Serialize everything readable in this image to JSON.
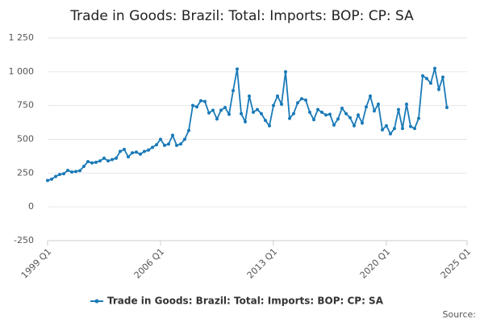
{
  "chart_data": {
    "type": "line",
    "title": "Trade in Goods: Brazil: Total: Imports: BOP: CP: SA",
    "source": "Source:",
    "x": [
      1999,
      1999.25,
      1999.5,
      1999.75,
      2000,
      2000.25,
      2000.5,
      2000.75,
      2001,
      2001.25,
      2001.5,
      2001.75,
      2002,
      2002.25,
      2002.5,
      2002.75,
      2003,
      2003.25,
      2003.5,
      2003.75,
      2004,
      2004.25,
      2004.5,
      2004.75,
      2005,
      2005.25,
      2005.5,
      2005.75,
      2006,
      2006.25,
      2006.5,
      2006.75,
      2007,
      2007.25,
      2007.5,
      2007.75,
      2008,
      2008.25,
      2008.5,
      2008.75,
      2009,
      2009.25,
      2009.5,
      2009.75,
      2010,
      2010.25,
      2010.5,
      2010.75,
      2011,
      2011.25,
      2011.5,
      2011.75,
      2012,
      2012.25,
      2012.5,
      2012.75,
      2013,
      2013.25,
      2013.5,
      2013.75,
      2014,
      2014.25,
      2014.5,
      2014.75,
      2015,
      2015.25,
      2015.5,
      2015.75,
      2016,
      2016.25,
      2016.5,
      2016.75,
      2017,
      2017.25,
      2017.5,
      2017.75,
      2018,
      2018.25,
      2018.5,
      2018.75,
      2019,
      2019.25,
      2019.5,
      2019.75,
      2020,
      2020.25,
      2020.5,
      2020.75,
      2021,
      2021.25,
      2021.5,
      2021.75,
      2022,
      2022.25,
      2022.5,
      2022.75,
      2023,
      2023.25,
      2023.5,
      2023.75
    ],
    "series": [
      {
        "name": "Trade in Goods: Brazil: Total: Imports: BOP: CP: SA",
        "color": "#1a7ab8",
        "values": [
          195,
          205,
          225,
          240,
          245,
          270,
          258,
          262,
          268,
          300,
          335,
          325,
          330,
          340,
          360,
          340,
          350,
          360,
          410,
          425,
          370,
          400,
          405,
          390,
          410,
          420,
          440,
          460,
          500,
          455,
          465,
          530,
          455,
          465,
          500,
          565,
          750,
          740,
          785,
          780,
          695,
          715,
          650,
          715,
          735,
          685,
          860,
          1020,
          690,
          630,
          820,
          700,
          720,
          690,
          640,
          600,
          750,
          820,
          760,
          1000,
          655,
          690,
          770,
          800,
          790,
          700,
          645,
          720,
          700,
          680,
          685,
          605,
          650,
          730,
          690,
          660,
          600,
          680,
          620,
          740,
          820,
          710,
          760,
          570,
          600,
          540,
          580,
          720,
          580,
          760,
          595,
          580,
          655,
          970,
          950,
          915,
          1025,
          870,
          960,
          735
        ]
      }
    ],
    "xlim": [
      1999,
      2025
    ],
    "xticks": [
      {
        "value": 1999,
        "label": "1999 Q1"
      },
      {
        "value": 2006,
        "label": "2006 Q1"
      },
      {
        "value": 2013,
        "label": "2013 Q1"
      },
      {
        "value": 2020,
        "label": "2020 Q1"
      },
      {
        "value": 2025,
        "label": "2025 Q1"
      }
    ],
    "ylim": [
      -250,
      1250
    ],
    "yticks": [
      -250,
      0,
      250,
      500,
      750,
      {
        "value": 1000,
        "label": "1 000"
      },
      {
        "value": 1250,
        "label": "1 250"
      }
    ],
    "grid": true
  }
}
